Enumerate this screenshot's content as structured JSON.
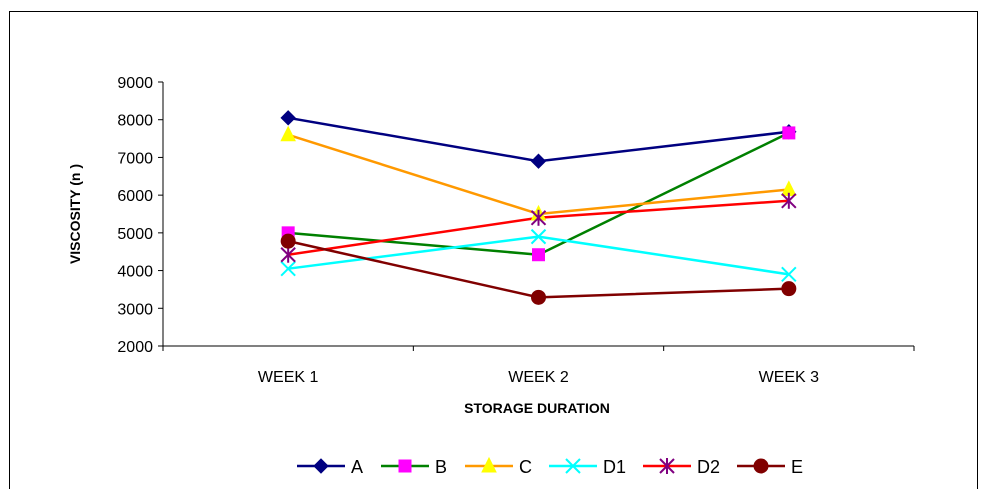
{
  "chart_data": {
    "type": "line",
    "title": "",
    "xlabel": "STORAGE DURATION",
    "ylabel": "VISCOSITY (n )",
    "categories": [
      "WEEK 1",
      "WEEK 2",
      "WEEK 3"
    ],
    "ylim": [
      2000,
      9000
    ],
    "yticks": [
      2000,
      3000,
      4000,
      5000,
      6000,
      7000,
      8000,
      9000
    ],
    "grid": false,
    "legend_position": "bottom",
    "series": [
      {
        "name": "A",
        "color": "#000080",
        "marker": "diamond",
        "values": [
          8050,
          6900,
          7680
        ]
      },
      {
        "name": "B",
        "color": "#008000",
        "marker_color": "#ff00ff",
        "marker": "square",
        "values": [
          5000,
          4420,
          7650
        ]
      },
      {
        "name": "C",
        "color": "#ff9900",
        "marker_color": "#ffff00",
        "marker": "triangle",
        "values": [
          7600,
          5500,
          6150
        ]
      },
      {
        "name": "D1",
        "color": "#00ffff",
        "marker": "x",
        "values": [
          4050,
          4900,
          3900
        ]
      },
      {
        "name": "D2",
        "color": "#ff0000",
        "marker_color": "#800080",
        "marker": "star",
        "values": [
          4420,
          5400,
          5850
        ]
      },
      {
        "name": "E",
        "color": "#800000",
        "marker": "circle",
        "values": [
          4780,
          3290,
          3520
        ]
      }
    ]
  }
}
